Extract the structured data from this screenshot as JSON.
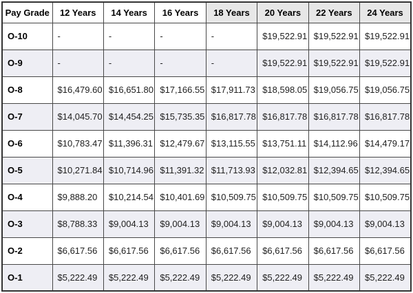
{
  "chart_data": {
    "type": "table",
    "columns": [
      "Pay Grade",
      "12 Years",
      "14 Years",
      "16 Years",
      "18 Years",
      "20 Years",
      "22 Years",
      "24 Years"
    ],
    "header_highlighted_columns": [
      "18 Years",
      "20 Years",
      "22 Years",
      "24 Years"
    ],
    "header_highlight_start_index": 4,
    "rows": [
      {
        "grade": "O-10",
        "values": [
          "-",
          "-",
          "-",
          "-",
          "$19,522.91",
          "$19,522.91",
          "$19,522.91"
        ]
      },
      {
        "grade": "O-9",
        "values": [
          "-",
          "-",
          "-",
          "-",
          "$19,522.91",
          "$19,522.91",
          "$19,522.91"
        ]
      },
      {
        "grade": "O-8",
        "values": [
          "$16,479.60",
          "$16,651.80",
          "$17,166.55",
          "$17,911.73",
          "$18,598.05",
          "$19,056.75",
          "$19,056.75"
        ]
      },
      {
        "grade": "O-7",
        "values": [
          "$14,045.70",
          "$14,454.25",
          "$15,735.35",
          "$16,817.78",
          "$16,817.78",
          "$16,817.78",
          "$16,817.78"
        ]
      },
      {
        "grade": "O-6",
        "values": [
          "$10,783.47",
          "$11,396.31",
          "$12,479.67",
          "$13,115.55",
          "$13,751.11",
          "$14,112.96",
          "$14,479.17"
        ]
      },
      {
        "grade": "O-5",
        "values": [
          "$10,271.84",
          "$10,714.96",
          "$11,391.32",
          "$11,713.93",
          "$12,032.81",
          "$12,394.65",
          "$12,394.65"
        ]
      },
      {
        "grade": "O-4",
        "values": [
          "$9,888.20",
          "$10,214.54",
          "$10,401.69",
          "$10,509.75",
          "$10,509.75",
          "$10,509.75",
          "$10,509.75"
        ]
      },
      {
        "grade": "O-3",
        "values": [
          "$8,788.33",
          "$9,004.13",
          "$9,004.13",
          "$9,004.13",
          "$9,004.13",
          "$9,004.13",
          "$9,004.13"
        ]
      },
      {
        "grade": "O-2",
        "values": [
          "$6,617.56",
          "$6,617.56",
          "$6,617.56",
          "$6,617.56",
          "$6,617.56",
          "$6,617.56",
          "$6,617.56"
        ]
      },
      {
        "grade": "O-1",
        "values": [
          "$5,222.49",
          "$5,222.49",
          "$5,222.49",
          "$5,222.49",
          "$5,222.49",
          "$5,222.49",
          "$5,222.49"
        ]
      }
    ]
  },
  "colors": {
    "border": "#474747",
    "border_outer": "#333333",
    "header_bg": "#ffffff",
    "header_highlight_bg": "#e7e7e7",
    "header_text": "#000000",
    "row_bg": "#ffffff",
    "row_alt_bg": "#eeeef4",
    "grade_text": "#000000",
    "cell_text": "#212121"
  }
}
